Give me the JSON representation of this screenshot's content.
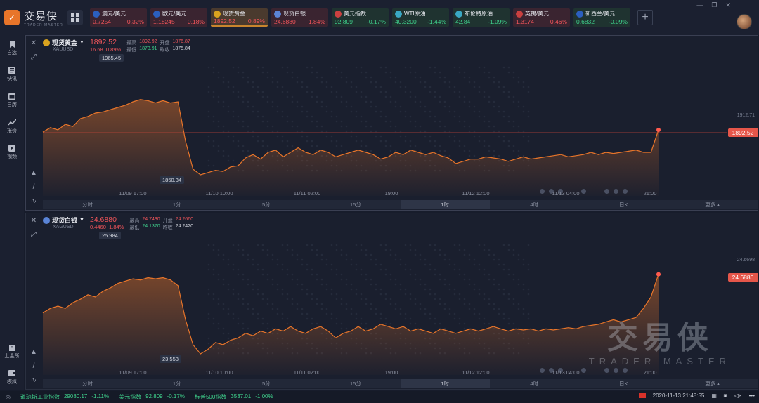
{
  "app": {
    "title": "交易侠",
    "subtitle": "TRADER MASTER"
  },
  "tickers": [
    {
      "name": "澳元/美元",
      "price": "0.7254",
      "change": "0.32%",
      "dir": "up",
      "flag": "#2b5fbf"
    },
    {
      "name": "欧元/美元",
      "price": "1.18245",
      "change": "0.18%",
      "dir": "up",
      "flag": "#2b5fbf"
    },
    {
      "name": "现货黄金",
      "price": "1892.52",
      "change": "0.89%",
      "dir": "up",
      "flag": "#d9a31f",
      "active": true
    },
    {
      "name": "现货白银",
      "price": "24.6880",
      "change": "1.84%",
      "dir": "up",
      "flag": "#5a84d6"
    },
    {
      "name": "美元指数",
      "price": "92.809",
      "change": "-0.17%",
      "dir": "down",
      "flag": "#c94040"
    },
    {
      "name": "WTI原油",
      "price": "40.3200",
      "change": "-1.44%",
      "dir": "down",
      "flag": "#3aa8c4"
    },
    {
      "name": "布伦特原油",
      "price": "42.84",
      "change": "-1.09%",
      "dir": "down",
      "flag": "#3aa8c4"
    },
    {
      "name": "英镑/美元",
      "price": "1.3174",
      "change": "0.46%",
      "dir": "up",
      "flag": "#c94040"
    },
    {
      "name": "新西兰/美元",
      "price": "0.6832",
      "change": "-0.09%",
      "dir": "down",
      "flag": "#2b5fbf"
    }
  ],
  "sidebar": {
    "items": [
      {
        "label": "自选",
        "icon": "bookmark-icon"
      },
      {
        "label": "快讯",
        "icon": "news-icon"
      },
      {
        "label": "日历",
        "icon": "calendar-icon"
      },
      {
        "label": "报价",
        "icon": "quote-chart-icon"
      },
      {
        "label": "视频",
        "icon": "video-icon"
      }
    ],
    "bottom": [
      {
        "label": "上金所",
        "icon": "building-icon"
      },
      {
        "label": "模拟",
        "icon": "wallet-icon"
      }
    ]
  },
  "panels": [
    {
      "name": "现货黄金",
      "code": "XAUUSD",
      "price": "1892.52",
      "change": "16.68",
      "change_pct": "0.89%",
      "high_label": "最高",
      "high": "1892.92",
      "open_label": "开盘",
      "open": "1876.87",
      "low_label": "最低",
      "low": "1873.91",
      "prev_label": "昨收",
      "prev": "1875.84",
      "max_callout": "1965.45",
      "min_callout": "1850.34",
      "axis_right": "1912.71",
      "price_tag": "1892.52",
      "coin_color": "#d9a31f"
    },
    {
      "name": "现货白银",
      "code": "XAGUSD",
      "price": "24.6880",
      "change": "0.4460",
      "change_pct": "1.84%",
      "high_label": "最高",
      "high": "24.7430",
      "open_label": "开盘",
      "open": "24.2660",
      "low_label": "最低",
      "low": "24.1370",
      "prev_label": "昨收",
      "prev": "24.2420",
      "max_callout": "25.984",
      "min_callout": "23.553",
      "axis_right": "24.6698",
      "price_tag": "24.6880",
      "coin_color": "#5a84d6"
    }
  ],
  "time_labels": [
    "11/09 17:00",
    "11/10 10:00",
    "11/11 02:00",
    "19:00",
    "11/12 12:00",
    "11/13 04:00",
    "21:00"
  ],
  "periods": [
    "分时",
    "1分",
    "5分",
    "15分",
    "1时",
    "4时",
    "日K",
    "更多▲"
  ],
  "selected_period": "1时",
  "watermark": {
    "main": "交易侠",
    "sub": "TRADER MASTER"
  },
  "statusbar": {
    "items": [
      {
        "name": "道琼斯工业指数",
        "value": "29080.17",
        "change": "-1.11%"
      },
      {
        "name": "美元指数",
        "value": "92.809",
        "change": "-0.17%"
      },
      {
        "name": "标普500指数",
        "value": "3537.01",
        "change": "-1.00%"
      }
    ],
    "datetime": "2020-11-13 21:48:55"
  },
  "colors": {
    "up": "#f2555a",
    "down": "#3fd18c",
    "line": "#e8752a",
    "accent": "#e5564a"
  }
}
